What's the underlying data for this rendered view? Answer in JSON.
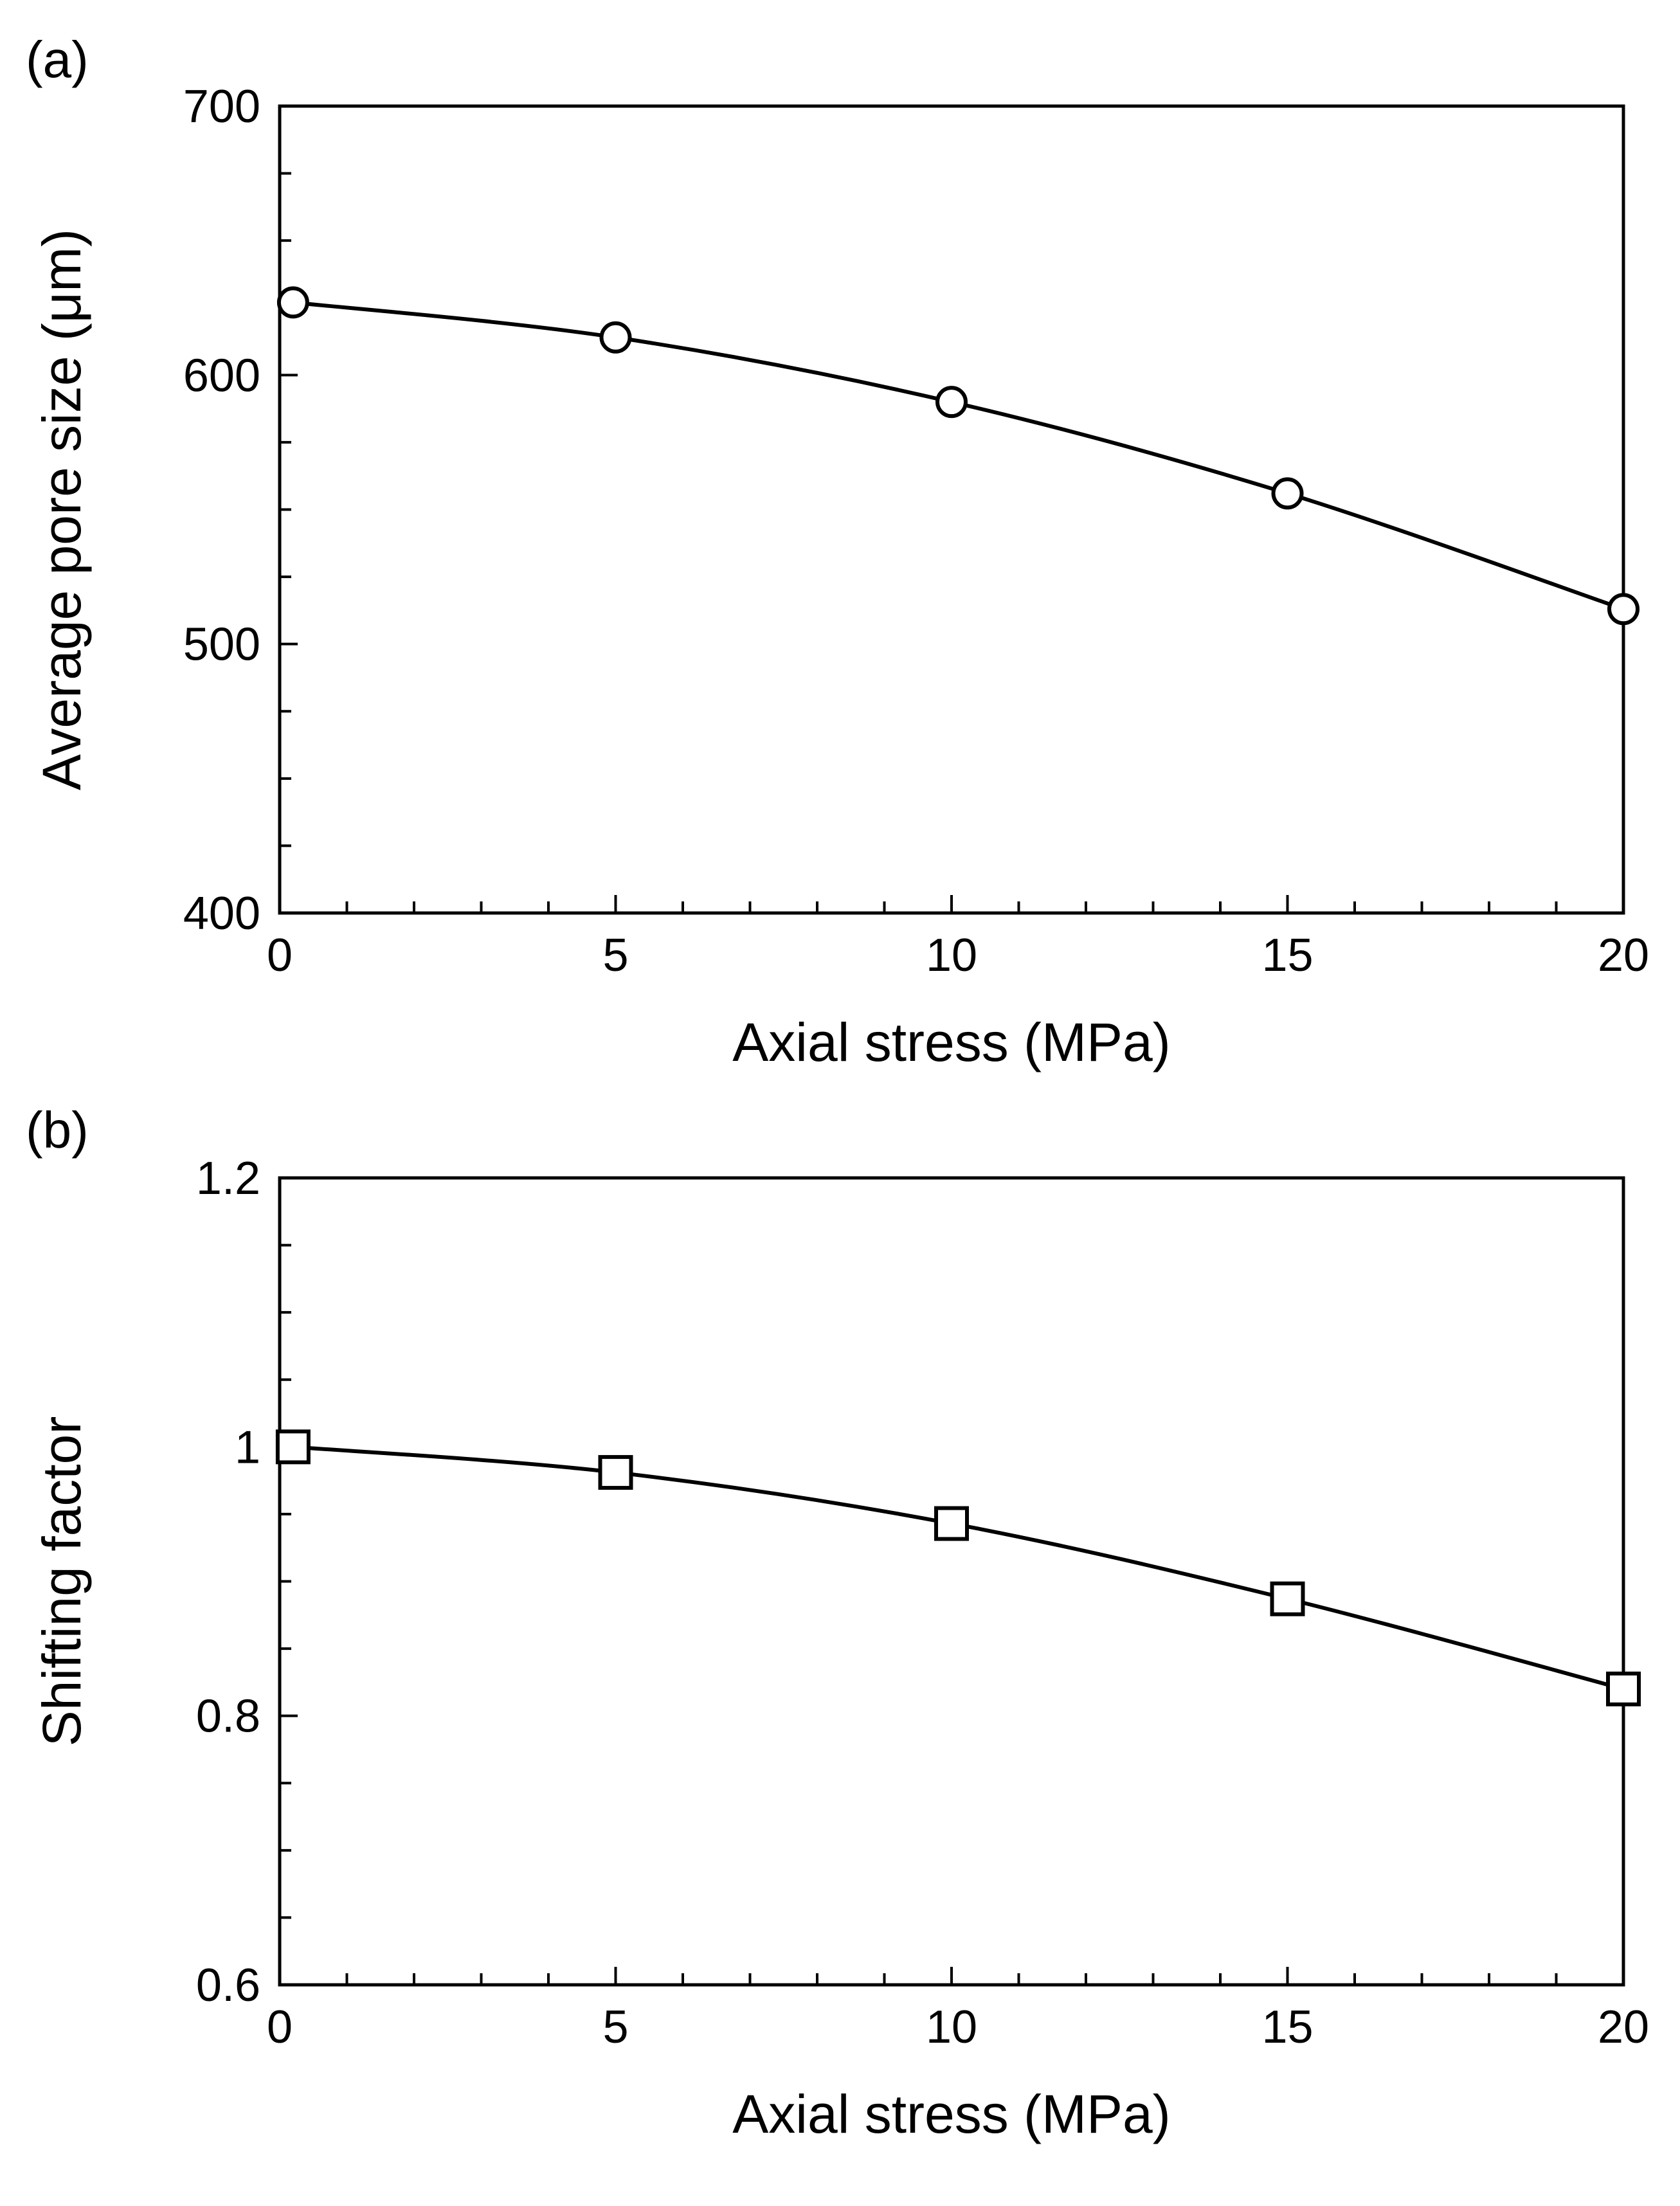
{
  "chart_data": [
    {
      "panel_label": "(a)",
      "type": "line",
      "title": "",
      "xlabel": "Axial stress (MPa)",
      "ylabel": "Average pore size (μm)",
      "xlim": [
        0,
        20
      ],
      "ylim": [
        400,
        700
      ],
      "x_major_ticks": [
        0,
        5,
        10,
        15,
        20
      ],
      "x_minor_step": 1,
      "y_major_ticks": [
        400,
        500,
        600,
        700
      ],
      "y_minor_step": 25,
      "x_tick_labels": [
        "0",
        "5",
        "10",
        "15",
        "20"
      ],
      "y_tick_labels": [
        "400",
        "500",
        "600",
        "700"
      ],
      "grid": false,
      "legend": "none",
      "series": [
        {
          "name": "Average pore size",
          "marker": "circle",
          "x": [
            0.2,
            5,
            10,
            15,
            20
          ],
          "values": [
            627,
            614,
            590,
            556,
            513
          ]
        }
      ]
    },
    {
      "panel_label": "(b)",
      "type": "line",
      "title": "",
      "xlabel": "Axial stress (MPa)",
      "ylabel": "Shifting factor",
      "xlim": [
        0,
        20
      ],
      "ylim": [
        0.6,
        1.2
      ],
      "x_major_ticks": [
        0,
        5,
        10,
        15,
        20
      ],
      "x_minor_step": 1,
      "y_major_ticks": [
        0.6,
        0.8,
        1.0,
        1.2
      ],
      "y_minor_step": 0.05,
      "x_tick_labels": [
        "0",
        "5",
        "10",
        "15",
        "20"
      ],
      "y_tick_labels": [
        "0.6",
        "0.8",
        "1",
        "1.2"
      ],
      "grid": false,
      "legend": "none",
      "series": [
        {
          "name": "Shifting factor",
          "marker": "square",
          "x": [
            0.2,
            5,
            10,
            15,
            20
          ],
          "values": [
            1.0,
            0.981,
            0.943,
            0.887,
            0.82
          ]
        }
      ]
    }
  ]
}
